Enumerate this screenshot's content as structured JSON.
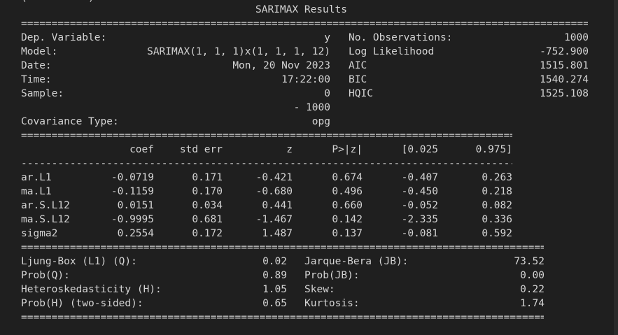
{
  "title": "SARIMAX Results",
  "cut_text": "(          )",
  "top_info": {
    "left": [
      {
        "label": "Dep. Variable:",
        "value": "y"
      },
      {
        "label": "Model:",
        "value": "SARIMAX(1, 1, 1)x(1, 1, 1, 12)"
      },
      {
        "label": "Date:",
        "value": "Mon, 20 Nov 2023"
      },
      {
        "label": "Time:",
        "value": "17:22:00"
      },
      {
        "label": "Sample:",
        "value": "0"
      },
      {
        "label": "",
        "value": "- 1000"
      },
      {
        "label": "Covariance Type:",
        "value": "opg"
      }
    ],
    "right": [
      {
        "label": "No. Observations:",
        "value": "1000"
      },
      {
        "label": "Log Likelihood",
        "value": "-752.900"
      },
      {
        "label": "AIC",
        "value": "1515.801"
      },
      {
        "label": "BIC",
        "value": "1540.274"
      },
      {
        "label": "HQIC",
        "value": "1525.108"
      }
    ]
  },
  "coef_table": {
    "headers": [
      "coef",
      "std err",
      "z",
      "P>|z|",
      "[0.025",
      "0.975]"
    ],
    "rows": [
      {
        "name": "ar.L1",
        "values": [
          "-0.0719",
          "0.171",
          "-0.421",
          "0.674",
          "-0.407",
          "0.263"
        ]
      },
      {
        "name": "ma.L1",
        "values": [
          "-0.1159",
          "0.170",
          "-0.680",
          "0.496",
          "-0.450",
          "0.218"
        ]
      },
      {
        "name": "ar.S.L12",
        "values": [
          "0.0151",
          "0.034",
          "0.441",
          "0.660",
          "-0.052",
          "0.082"
        ]
      },
      {
        "name": "ma.S.L12",
        "values": [
          "-0.9995",
          "0.681",
          "-1.467",
          "0.142",
          "-2.335",
          "0.336"
        ]
      },
      {
        "name": "sigma2",
        "values": [
          "0.2554",
          "0.172",
          "1.487",
          "0.137",
          "-0.081",
          "0.592"
        ]
      }
    ]
  },
  "diagnostics": {
    "left": [
      {
        "label": "Ljung-Box (L1) (Q):",
        "value": "0.02"
      },
      {
        "label": "Prob(Q):",
        "value": "0.89"
      },
      {
        "label": "Heteroskedasticity (H):",
        "value": "1.05"
      },
      {
        "label": "Prob(H) (two-sided):",
        "value": "0.65"
      }
    ],
    "right": [
      {
        "label": "Jarque-Bera (JB):",
        "value": "73.52"
      },
      {
        "label": "Prob(JB):",
        "value": "0.00"
      },
      {
        "label": "Skew:",
        "value": "0.22"
      },
      {
        "label": "Kurtosis:",
        "value": "1.74"
      }
    ]
  },
  "rule_double": "==============================================================================================================",
  "rule_single": "--------------------------------------------------------------------------------------------------------------"
}
